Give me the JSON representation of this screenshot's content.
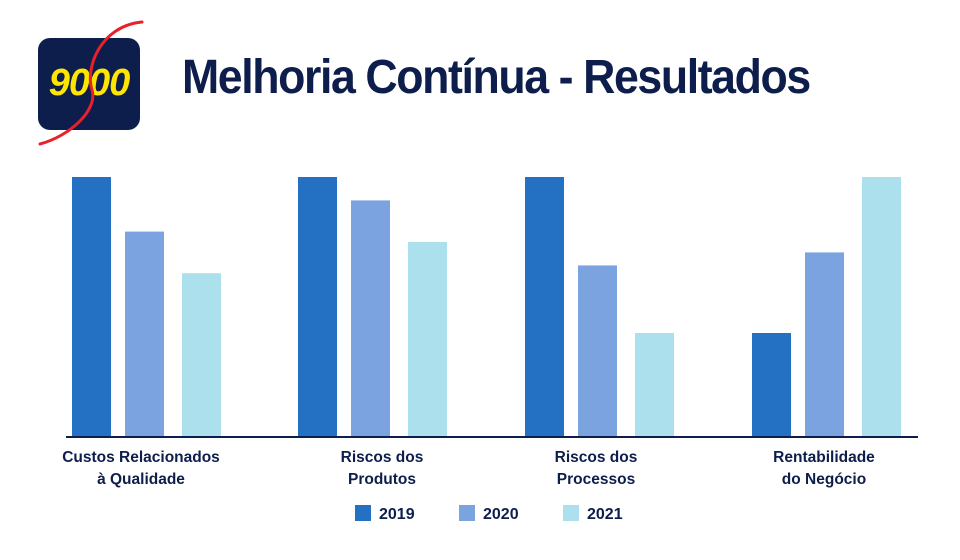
{
  "logo": {
    "text": "9000",
    "background_color": "#0d1e4c",
    "text_color": "#ffe600",
    "swoosh_color": "#e8202a"
  },
  "title": "Melhoria Contínua - Resultados",
  "chart_data": {
    "type": "bar",
    "title": "Melhoria Contínua - Resultados",
    "xlabel": "",
    "ylabel": "",
    "y_axis_visible": false,
    "grid": false,
    "legend_position": "bottom",
    "ylim": [
      0,
      100
    ],
    "categories": [
      [
        "Custos Relacionados",
        "à Qualidade"
      ],
      [
        "Riscos dos",
        "Produtos"
      ],
      [
        "Riscos dos",
        "Processos"
      ],
      [
        "Rentabilidade",
        "do Negócio"
      ]
    ],
    "series": [
      {
        "name": "2019",
        "color": "#2470c2",
        "values": [
          100,
          100,
          100,
          40
        ]
      },
      {
        "name": "2020",
        "color": "#7ba3e0",
        "values": [
          79,
          91,
          66,
          71
        ]
      },
      {
        "name": "2021",
        "color": "#abe0ec",
        "values": [
          63,
          75,
          40,
          100
        ]
      }
    ]
  }
}
